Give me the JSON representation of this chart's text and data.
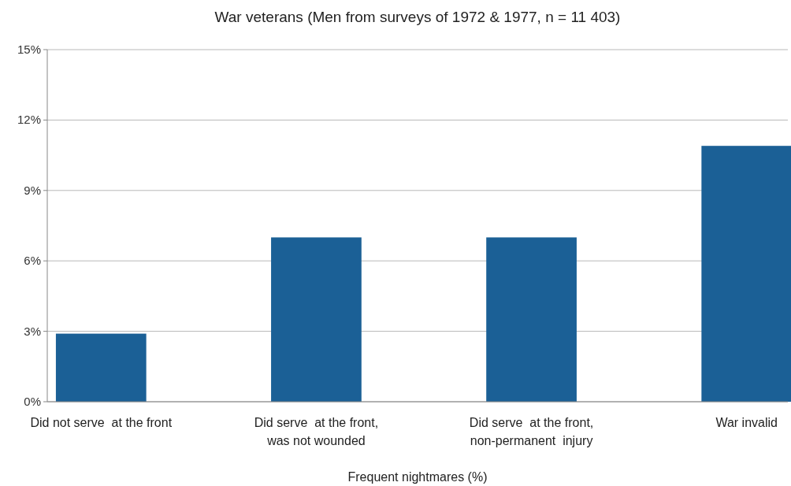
{
  "chart_data": {
    "type": "bar",
    "title": "War veterans (Men from surveys of 1972 & 1977, n = 11 403)",
    "xlabel": "Frequent nightmares (%)",
    "categories": [
      "Did not serve  at the front",
      "Did serve  at the front,\nwas not wounded",
      "Did serve  at the front,\nnon-permanent  injury",
      "War invalid"
    ],
    "values": [
      2.9,
      7.0,
      7.0,
      10.9
    ],
    "color": "#1b6096",
    "ylim": [
      0,
      15
    ],
    "yticks": [
      {
        "value": 0,
        "label": "0%"
      },
      {
        "value": 3,
        "label": "3%"
      },
      {
        "value": 6,
        "label": "6%"
      },
      {
        "value": 9,
        "label": "9%"
      },
      {
        "value": 12,
        "label": "12%"
      },
      {
        "value": 15,
        "label": "15%"
      }
    ],
    "grid": "y"
  }
}
